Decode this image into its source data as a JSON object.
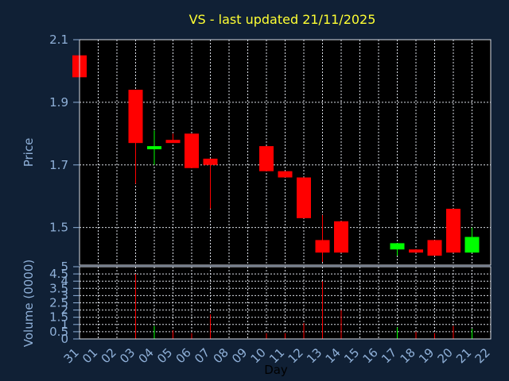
{
  "chart_data": {
    "type": "candlestick",
    "title": "VS - last updated 21/11/2025",
    "xlabel": "Day",
    "price_panel": {
      "ylabel": "Price",
      "ylim": [
        1.38,
        2.1
      ],
      "yticks": [
        "2.1",
        "1.9",
        "1.7",
        "1.5"
      ],
      "ytick_values": [
        2.1,
        1.9,
        1.7,
        1.5
      ],
      "grid": true
    },
    "volume_panel": {
      "ylabel": "Volume (0000)",
      "ylim": [
        0,
        5
      ],
      "yticks": [
        "5",
        "4.5",
        "4",
        "3.5",
        "3",
        "2.5",
        "2",
        "1.5",
        "1",
        "0.5",
        "0"
      ],
      "ytick_values": [
        5,
        4.5,
        4,
        3.5,
        3,
        2.5,
        2,
        1.5,
        1,
        0.5,
        0
      ],
      "grid": true
    },
    "x_ticks": [
      "31",
      "01",
      "02",
      "03",
      "04",
      "05",
      "06",
      "07",
      "08",
      "09",
      "10",
      "11",
      "12",
      "13",
      "14",
      "15",
      "16",
      "17",
      "18",
      "19",
      "20",
      "21",
      "22"
    ],
    "series": [
      {
        "day": "31",
        "open": 2.05,
        "high": 2.05,
        "low": 1.98,
        "close": 1.98,
        "volume": 0.1
      },
      {
        "day": "03",
        "open": 1.94,
        "high": 1.94,
        "low": 1.64,
        "close": 1.77,
        "volume": 4.5
      },
      {
        "day": "04",
        "open": 1.75,
        "high": 1.81,
        "low": 1.7,
        "close": 1.76,
        "volume": 0.9
      },
      {
        "day": "05",
        "open": 1.78,
        "high": 1.8,
        "low": 1.77,
        "close": 1.77,
        "volume": 0.6
      },
      {
        "day": "06",
        "open": 1.8,
        "high": 1.8,
        "low": 1.69,
        "close": 1.69,
        "volume": 0.4
      },
      {
        "day": "07",
        "open": 1.72,
        "high": 1.72,
        "low": 1.56,
        "close": 1.7,
        "volume": 1.7
      },
      {
        "day": "10",
        "open": 1.76,
        "high": 1.76,
        "low": 1.68,
        "close": 1.68,
        "volume": 0.4
      },
      {
        "day": "11",
        "open": 1.68,
        "high": 1.68,
        "low": 1.66,
        "close": 1.66,
        "volume": 0.4
      },
      {
        "day": "12",
        "open": 1.66,
        "high": 1.66,
        "low": 1.53,
        "close": 1.53,
        "volume": 1.1
      },
      {
        "day": "13",
        "open": 1.46,
        "high": 1.54,
        "low": 1.39,
        "close": 1.42,
        "volume": 4.0
      },
      {
        "day": "14",
        "open": 1.52,
        "high": 1.52,
        "low": 1.42,
        "close": 1.42,
        "volume": 2.0
      },
      {
        "day": "17",
        "open": 1.43,
        "high": 1.45,
        "low": 1.41,
        "close": 1.45,
        "volume": 0.8
      },
      {
        "day": "18",
        "open": 1.43,
        "high": 1.43,
        "low": 1.42,
        "close": 1.42,
        "volume": 0.5
      },
      {
        "day": "19",
        "open": 1.46,
        "high": 1.46,
        "low": 1.41,
        "close": 1.41,
        "volume": 0.4
      },
      {
        "day": "20",
        "open": 1.56,
        "high": 1.56,
        "low": 1.42,
        "close": 1.42,
        "volume": 0.9
      },
      {
        "day": "21",
        "open": 1.42,
        "high": 1.5,
        "low": 1.42,
        "close": 1.47,
        "volume": 0.7
      }
    ],
    "colors": {
      "background": "#102035",
      "plot": "#000000",
      "up": "#00ff00",
      "down": "#ff0000",
      "grid": "#d9dde5",
      "title": "#ffff33",
      "text": "#8fb0d8"
    }
  }
}
